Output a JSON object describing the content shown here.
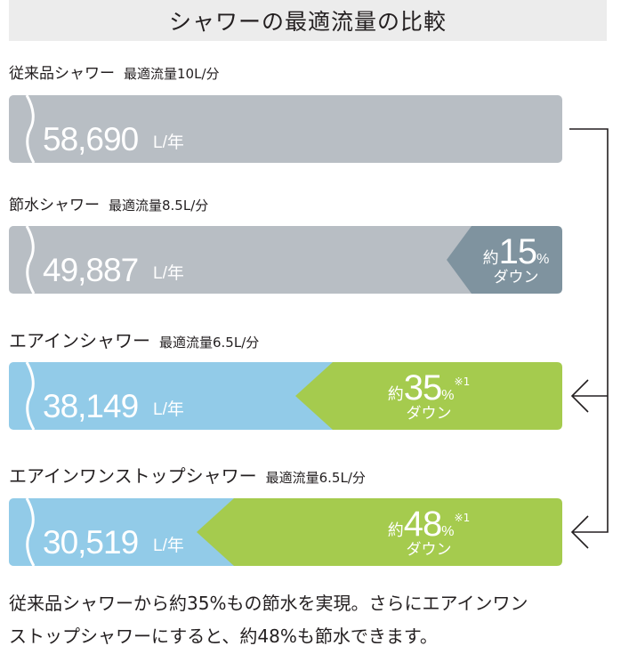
{
  "title": "シャワーの最適流量の比較",
  "chart_data": {
    "type": "bar",
    "title": "シャワーの最適流量の比較",
    "orientation": "horizontal",
    "unit": "L/年",
    "rows": [
      {
        "name": "従来品シャワー",
        "flow_label": "最適流量10L/分",
        "value": 58690,
        "value_label": "58,690",
        "unit": "L/年",
        "color": "#b8bec4",
        "reduction": null
      },
      {
        "name": "節水シャワー",
        "flow_label": "最適流量8.5L/分",
        "value": 49887,
        "value_label": "49,887",
        "unit": "L/年",
        "color": "#b8bec4",
        "reduction": {
          "prefix": "約",
          "percent": "15",
          "suffix": "%",
          "note": "",
          "down": "ダウン",
          "color": "#7f939f"
        }
      },
      {
        "name": "エアインシャワー",
        "flow_label": "最適流量6.5L/分",
        "value": 38149,
        "value_label": "38,149",
        "unit": "L/年",
        "color": "#92cbe8",
        "reduction": {
          "prefix": "約",
          "percent": "35",
          "suffix": "%",
          "note": "※1",
          "down": "ダウン",
          "color": "#a5cb4e"
        }
      },
      {
        "name": "エアインワンストップシャワー",
        "flow_label": "最適流量6.5L/分",
        "value": 30519,
        "value_label": "30,519",
        "unit": "L/年",
        "color": "#92cbe8",
        "reduction": {
          "prefix": "約",
          "percent": "48",
          "suffix": "%",
          "note": "※1",
          "down": "ダウン",
          "color": "#a5cb4e"
        }
      }
    ]
  },
  "footer": {
    "line1": "従来品シャワーから約35%もの節水を実現。さらにエアインワン",
    "line2": "ストップシャワーにすると、約48%も節水できます。"
  }
}
